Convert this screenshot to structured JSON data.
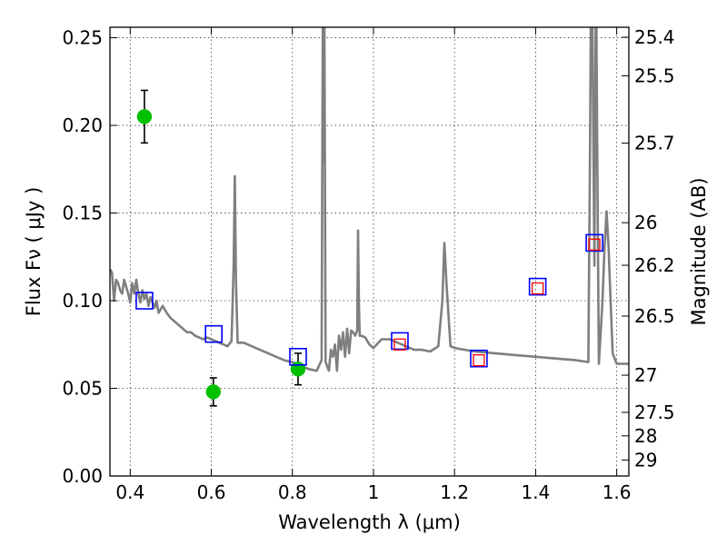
{
  "chart_data": {
    "type": "scatter",
    "xlabel": "Wavelength  λ (μm)",
    "ylabel": "Flux  Fν ( μJy )",
    "ylabel_right": "Magnitude (AB)",
    "xlim": [
      0.35,
      1.63
    ],
    "ylim": [
      0.0,
      0.256
    ],
    "grid": true,
    "x_ticks": [
      0.4,
      0.6,
      0.8,
      1.0,
      1.2,
      1.4,
      1.6
    ],
    "x_tick_labels": [
      "0.4",
      "0.6",
      "0.8",
      "1",
      "1.2",
      "1.4",
      "1.6"
    ],
    "y_ticks": [
      0.0,
      0.05,
      0.1,
      0.15,
      0.2,
      0.25
    ],
    "y_tick_labels": [
      "0.00",
      "0.05",
      "0.10",
      "0.15",
      "0.20",
      "0.25"
    ],
    "right_ticks": [
      {
        "label": "25.4",
        "flux": 0.2503
      },
      {
        "label": "25.5",
        "flux": 0.2283
      },
      {
        "label": "25.7",
        "flux": 0.1899
      },
      {
        "label": "26",
        "flux": 0.1445
      },
      {
        "label": "26.2",
        "flux": 0.1202
      },
      {
        "label": "26.5",
        "flux": 0.0912
      },
      {
        "label": "27",
        "flux": 0.0575
      },
      {
        "label": "27.5",
        "flux": 0.0363
      },
      {
        "label": "28",
        "flux": 0.0229
      },
      {
        "label": "29",
        "flux": 0.0091
      }
    ],
    "series": [
      {
        "kind": "model-spectrum",
        "color": "#7f7f7f",
        "x": [
          0.35,
          0.355,
          0.36,
          0.365,
          0.37,
          0.375,
          0.38,
          0.385,
          0.39,
          0.395,
          0.4,
          0.405,
          0.41,
          0.415,
          0.42,
          0.425,
          0.43,
          0.435,
          0.44,
          0.445,
          0.45,
          0.46,
          0.465,
          0.47,
          0.48,
          0.49,
          0.5,
          0.51,
          0.52,
          0.53,
          0.54,
          0.55,
          0.56,
          0.57,
          0.58,
          0.59,
          0.6,
          0.62,
          0.64,
          0.65,
          0.655,
          0.658,
          0.661,
          0.665,
          0.68,
          0.7,
          0.72,
          0.74,
          0.76,
          0.78,
          0.8,
          0.82,
          0.84,
          0.86,
          0.872,
          0.875,
          0.877,
          0.879,
          0.882,
          0.89,
          0.895,
          0.9,
          0.905,
          0.91,
          0.915,
          0.92,
          0.925,
          0.93,
          0.935,
          0.94,
          0.945,
          0.95,
          0.955,
          0.96,
          0.962,
          0.964,
          0.966,
          0.97,
          0.98,
          0.99,
          1.0,
          1.02,
          1.04,
          1.06,
          1.08,
          1.1,
          1.12,
          1.14,
          1.16,
          1.17,
          1.175,
          1.18,
          1.19,
          1.2,
          1.25,
          1.3,
          1.35,
          1.4,
          1.45,
          1.5,
          1.53,
          1.534,
          1.536,
          1.54,
          1.545,
          1.548,
          1.55,
          1.553,
          1.556,
          1.56,
          1.565,
          1.57,
          1.575,
          1.58,
          1.585,
          1.59,
          1.6,
          1.61,
          1.62,
          1.63
        ],
        "y": [
          0.118,
          0.116,
          0.1,
          0.112,
          0.11,
          0.106,
          0.104,
          0.112,
          0.108,
          0.104,
          0.099,
          0.11,
          0.104,
          0.112,
          0.104,
          0.099,
          0.106,
          0.101,
          0.104,
          0.097,
          0.102,
          0.096,
          0.1,
          0.093,
          0.097,
          0.093,
          0.09,
          0.088,
          0.086,
          0.084,
          0.082,
          0.082,
          0.08,
          0.079,
          0.078,
          0.079,
          0.078,
          0.076,
          0.074,
          0.077,
          0.12,
          0.171,
          0.11,
          0.076,
          0.076,
          0.074,
          0.072,
          0.07,
          0.068,
          0.066,
          0.065,
          0.063,
          0.061,
          0.06,
          0.066,
          0.256,
          0.18,
          0.256,
          0.065,
          0.06,
          0.072,
          0.068,
          0.075,
          0.06,
          0.08,
          0.072,
          0.082,
          0.068,
          0.084,
          0.07,
          0.083,
          0.082,
          0.08,
          0.083,
          0.14,
          0.1,
          0.08,
          0.08,
          0.079,
          0.075,
          0.073,
          0.078,
          0.078,
          0.076,
          0.074,
          0.072,
          0.072,
          0.071,
          0.074,
          0.1,
          0.133,
          0.11,
          0.074,
          0.073,
          0.071,
          0.07,
          0.069,
          0.068,
          0.067,
          0.066,
          0.065,
          0.18,
          0.256,
          0.256,
          0.12,
          0.256,
          0.256,
          0.15,
          0.064,
          0.08,
          0.1,
          0.13,
          0.151,
          0.13,
          0.1,
          0.07,
          0.064,
          0.064,
          0.064,
          0.064
        ]
      },
      {
        "kind": "observed-photometry",
        "color": "#00c000",
        "x": [
          0.435,
          0.605,
          0.814
        ],
        "y": [
          0.205,
          0.048,
          0.061
        ],
        "yerr": [
          0.015,
          0.008,
          0.009
        ]
      },
      {
        "kind": "model-photometry-blue",
        "color": "#0000ff",
        "x": [
          0.435,
          0.606,
          0.814,
          1.065,
          1.26,
          1.405,
          1.545
        ],
        "y": [
          0.1,
          0.081,
          0.068,
          0.077,
          0.067,
          0.108,
          0.133
        ]
      },
      {
        "kind": "model-photometry-red",
        "color": "#ff0000",
        "x": [
          1.065,
          1.26,
          1.405,
          1.545
        ],
        "y": [
          0.075,
          0.066,
          0.107,
          0.132
        ]
      }
    ]
  }
}
